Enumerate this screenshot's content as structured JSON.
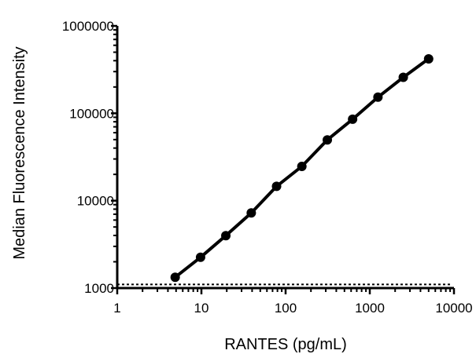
{
  "chart_data": {
    "type": "line",
    "title": "",
    "xlabel": "RANTES (pg/mL)",
    "ylabel": "Median Fluorescence Intensity",
    "x_scale": "log",
    "y_scale": "log",
    "xlim": [
      1,
      10000
    ],
    "ylim": [
      1000,
      1000000
    ],
    "x_ticks": [
      "1",
      "10",
      "100",
      "1000",
      "10000"
    ],
    "y_ticks": [
      "1000",
      "10000",
      "100000",
      "1000000"
    ],
    "grid": false,
    "series": [
      {
        "color": "#000000",
        "x": [
          4.88,
          9.77,
          19.5,
          39.1,
          78.1,
          156,
          313,
          625,
          1250,
          2500,
          5000
        ],
        "y": [
          1330,
          2250,
          3980,
          7240,
          14600,
          24700,
          49600,
          85500,
          153000,
          258000,
          420000
        ]
      }
    ],
    "reference_line": {
      "style": "dashed",
      "y": 1100
    }
  }
}
